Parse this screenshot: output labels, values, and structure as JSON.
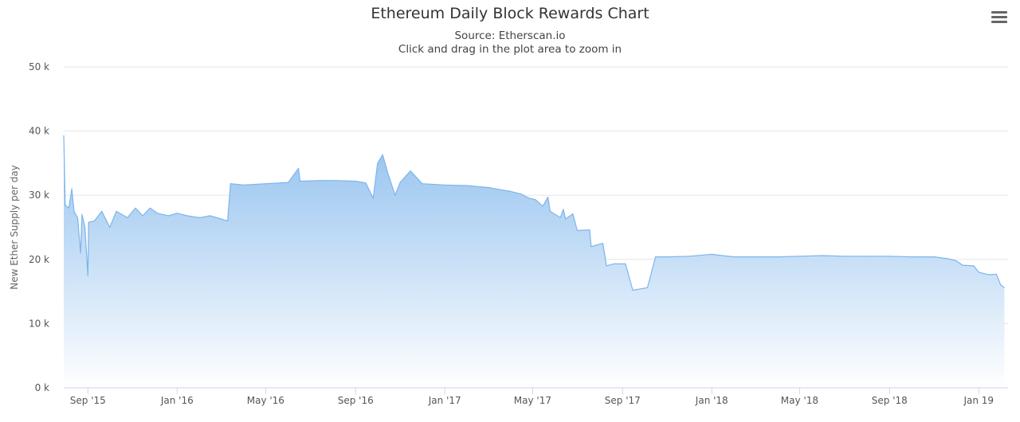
{
  "title": "Ethereum Daily Block Rewards Chart",
  "subtitle": "Source: Etherscan.io",
  "instruction": "Click and drag in the plot area to zoom in",
  "menu_icon": "hamburger-menu-icon",
  "colors": {
    "line": "#7cb5ec",
    "fill_top": "#8fbfee",
    "fill_bottom": "#ffffff",
    "grid": "#e6e6e6",
    "axis": "#ccd6eb"
  },
  "chart_data": {
    "type": "area",
    "title": "Ethereum Daily Block Rewards Chart",
    "xlabel": "",
    "ylabel": "New Ether Supply per day",
    "ylim": [
      0,
      50000
    ],
    "xlim": [
      "2015-07-30",
      "2019-02-10"
    ],
    "grid": true,
    "y_ticks": [
      {
        "value": 0,
        "label": "0 k"
      },
      {
        "value": 10000,
        "label": "10 k"
      },
      {
        "value": 20000,
        "label": "20 k"
      },
      {
        "value": 30000,
        "label": "30 k"
      },
      {
        "value": 40000,
        "label": "40 k"
      },
      {
        "value": 50000,
        "label": "50 k"
      }
    ],
    "x_ticks": [
      {
        "date": "2015-09-01",
        "label": "Sep '15"
      },
      {
        "date": "2016-01-01",
        "label": "Jan '16"
      },
      {
        "date": "2016-05-01",
        "label": "May '16"
      },
      {
        "date": "2016-09-01",
        "label": "Sep '16"
      },
      {
        "date": "2017-01-01",
        "label": "Jan '17"
      },
      {
        "date": "2017-05-01",
        "label": "May '17"
      },
      {
        "date": "2017-09-01",
        "label": "Sep '17"
      },
      {
        "date": "2018-01-01",
        "label": "Jan '18"
      },
      {
        "date": "2018-05-01",
        "label": "May '18"
      },
      {
        "date": "2018-09-01",
        "label": "Sep '18"
      },
      {
        "date": "2019-01-01",
        "label": "Jan 19"
      }
    ],
    "series": [
      {
        "values": [
          [
            "2015-07-30",
            39300
          ],
          [
            "2015-08-01",
            28500
          ],
          [
            "2015-08-06",
            28000
          ],
          [
            "2015-08-10",
            31000
          ],
          [
            "2015-08-13",
            27500
          ],
          [
            "2015-08-18",
            26500
          ],
          [
            "2015-08-22",
            21000
          ],
          [
            "2015-08-24",
            27000
          ],
          [
            "2015-08-28",
            25000
          ],
          [
            "2015-09-01",
            17500
          ],
          [
            "2015-09-02",
            25800
          ],
          [
            "2015-09-10",
            26000
          ],
          [
            "2015-09-20",
            27500
          ],
          [
            "2015-10-01",
            25000
          ],
          [
            "2015-10-10",
            27500
          ],
          [
            "2015-10-25",
            26500
          ],
          [
            "2015-11-05",
            28000
          ],
          [
            "2015-11-15",
            26800
          ],
          [
            "2015-11-25",
            28000
          ],
          [
            "2015-12-05",
            27200
          ],
          [
            "2015-12-20",
            26800
          ],
          [
            "2016-01-01",
            27200
          ],
          [
            "2016-01-15",
            26800
          ],
          [
            "2016-02-01",
            26500
          ],
          [
            "2016-02-15",
            26800
          ],
          [
            "2016-03-01",
            26300
          ],
          [
            "2016-03-10",
            26000
          ],
          [
            "2016-03-14",
            31800
          ],
          [
            "2016-04-01",
            31600
          ],
          [
            "2016-05-01",
            31800
          ],
          [
            "2016-06-01",
            32000
          ],
          [
            "2016-06-15",
            34200
          ],
          [
            "2016-06-17",
            32200
          ],
          [
            "2016-07-15",
            32300
          ],
          [
            "2016-08-01",
            32300
          ],
          [
            "2016-09-01",
            32200
          ],
          [
            "2016-09-15",
            31900
          ],
          [
            "2016-09-25",
            29500
          ],
          [
            "2016-10-01",
            35000
          ],
          [
            "2016-10-08",
            36300
          ],
          [
            "2016-10-15",
            33500
          ],
          [
            "2016-10-25",
            30000
          ],
          [
            "2016-11-01",
            32000
          ],
          [
            "2016-11-15",
            33800
          ],
          [
            "2016-12-01",
            31800
          ],
          [
            "2017-01-01",
            31600
          ],
          [
            "2017-02-01",
            31500
          ],
          [
            "2017-03-01",
            31200
          ],
          [
            "2017-04-01",
            30600
          ],
          [
            "2017-04-15",
            30200
          ],
          [
            "2017-04-25",
            29600
          ],
          [
            "2017-05-05",
            29300
          ],
          [
            "2017-05-15",
            28300
          ],
          [
            "2017-05-22",
            29700
          ],
          [
            "2017-05-25",
            27500
          ],
          [
            "2017-06-08",
            26500
          ],
          [
            "2017-06-12",
            27800
          ],
          [
            "2017-06-15",
            26300
          ],
          [
            "2017-06-25",
            27100
          ],
          [
            "2017-07-01",
            24500
          ],
          [
            "2017-07-18",
            24600
          ],
          [
            "2017-07-20",
            22000
          ],
          [
            "2017-08-05",
            22500
          ],
          [
            "2017-08-10",
            19000
          ],
          [
            "2017-08-20",
            19300
          ],
          [
            "2017-09-05",
            19300
          ],
          [
            "2017-09-15",
            15200
          ],
          [
            "2017-10-05",
            15600
          ],
          [
            "2017-10-16",
            20400
          ],
          [
            "2017-11-01",
            20400
          ],
          [
            "2017-12-01",
            20500
          ],
          [
            "2018-01-01",
            20800
          ],
          [
            "2018-01-15",
            20600
          ],
          [
            "2018-02-01",
            20400
          ],
          [
            "2018-03-01",
            20400
          ],
          [
            "2018-04-01",
            20400
          ],
          [
            "2018-05-01",
            20500
          ],
          [
            "2018-06-01",
            20600
          ],
          [
            "2018-07-01",
            20500
          ],
          [
            "2018-08-01",
            20500
          ],
          [
            "2018-09-01",
            20500
          ],
          [
            "2018-10-01",
            20400
          ],
          [
            "2018-11-01",
            20400
          ],
          [
            "2018-11-20",
            20100
          ],
          [
            "2018-12-01",
            19800
          ],
          [
            "2018-12-10",
            19100
          ],
          [
            "2018-12-25",
            19000
          ],
          [
            "2019-01-01",
            18000
          ],
          [
            "2019-01-15",
            17600
          ],
          [
            "2019-01-25",
            17700
          ],
          [
            "2019-01-31",
            16000
          ],
          [
            "2019-02-05",
            15600
          ]
        ]
      }
    ]
  }
}
